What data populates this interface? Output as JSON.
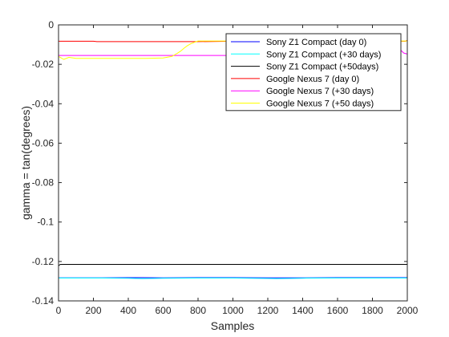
{
  "chart_data": {
    "type": "line",
    "title": "",
    "xlabel": "Samples",
    "ylabel": "gamma = tan(degrees)",
    "xlim": [
      0,
      2000
    ],
    "ylim": [
      -0.14,
      0
    ],
    "x_ticks": [
      "0",
      "200",
      "400",
      "600",
      "800",
      "1000",
      "1200",
      "1400",
      "1600",
      "1800",
      "2000"
    ],
    "y_ticks": [
      "0",
      "-0.02",
      "-0.04",
      "-0.06",
      "-0.08",
      "-0.1",
      "-0.12",
      "-0.14"
    ],
    "grid": false,
    "legend_position": "top-right",
    "series": [
      {
        "name": "Sony Z1 Compact (day 0)",
        "color": "#0000ff",
        "x": [
          0,
          200,
          400,
          480,
          600,
          800,
          1000,
          1200,
          1400,
          1600,
          1800,
          2000
        ],
        "y": [
          -0.1283,
          -0.1283,
          -0.1282,
          -0.1282,
          -0.1283,
          -0.1282,
          -0.1282,
          -0.1283,
          -0.1283,
          -0.1282,
          -0.1282,
          -0.1282
        ]
      },
      {
        "name": "Sony Z1 Compact (+30 days)",
        "color": "#00ffff",
        "x": [
          0,
          200,
          400,
          480,
          600,
          800,
          1000,
          1200,
          1250,
          1400,
          1600,
          1800,
          2000
        ],
        "y": [
          -0.1284,
          -0.1284,
          -0.1285,
          -0.1287,
          -0.1285,
          -0.1284,
          -0.1284,
          -0.1286,
          -0.1287,
          -0.1285,
          -0.1284,
          -0.1284,
          -0.1284
        ]
      },
      {
        "name": "Sony Z1 Compact (+50days)",
        "color": "#000000",
        "x": [
          0,
          10,
          2000
        ],
        "y": [
          -0.1222,
          -0.1215,
          -0.1215
        ]
      },
      {
        "name": "Google Nexus 7 (day 0)",
        "color": "#ff0000",
        "x": [
          0,
          200,
          220,
          800,
          1000,
          1990,
          2000
        ],
        "y": [
          -0.0083,
          -0.0083,
          -0.0085,
          -0.0085,
          -0.0083,
          -0.0083,
          -0.0078
        ]
      },
      {
        "name": "Google Nexus 7 (+30 days)",
        "color": "#ff00ff",
        "x": [
          0,
          600,
          1200,
          1950,
          1955,
          1980,
          2000
        ],
        "y": [
          -0.0155,
          -0.0155,
          -0.0155,
          -0.0155,
          -0.0122,
          -0.0143,
          -0.0148
        ]
      },
      {
        "name": "Google Nexus 7 (+50 days)",
        "color": "#ffff00",
        "x": [
          0,
          30,
          60,
          100,
          200,
          300,
          400,
          500,
          600,
          650,
          680,
          700,
          720,
          740,
          760,
          780,
          800,
          1000,
          1200,
          1400,
          1600,
          1800,
          2000
        ],
        "y": [
          -0.016,
          -0.0175,
          -0.0165,
          -0.017,
          -0.017,
          -0.017,
          -0.017,
          -0.017,
          -0.0168,
          -0.016,
          -0.0145,
          -0.0133,
          -0.0118,
          -0.0105,
          -0.0095,
          -0.0088,
          -0.0082,
          -0.0082,
          -0.0082,
          -0.0082,
          -0.0082,
          -0.0082,
          -0.0082
        ]
      }
    ]
  }
}
